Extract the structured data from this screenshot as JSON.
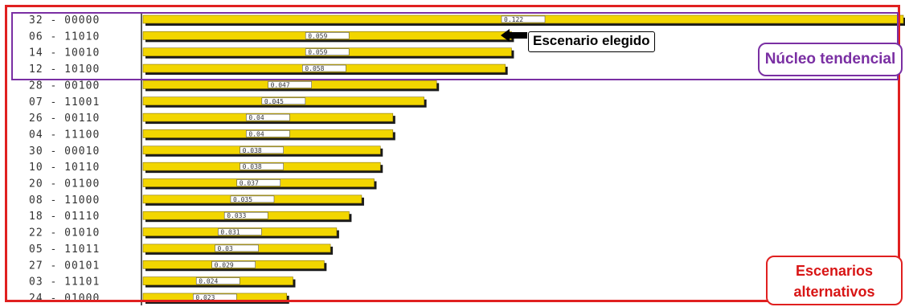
{
  "chart_data": {
    "type": "bar",
    "orientation": "horizontal",
    "categories": [
      "32 - 00000",
      "06 - 11010",
      "14 - 10010",
      "12 - 10100",
      "28 - 00100",
      "07 - 11001",
      "26 - 00110",
      "04 - 11100",
      "30 - 00010",
      "10 - 10110",
      "20 - 01100",
      "08 - 11000",
      "18 - 01110",
      "22 - 01010",
      "05 - 11011",
      "27 - 00101",
      "03 - 11101",
      "24 - 01000"
    ],
    "values": [
      0.122,
      0.059,
      0.059,
      0.058,
      0.047,
      0.045,
      0.04,
      0.04,
      0.038,
      0.038,
      0.037,
      0.035,
      0.033,
      0.031,
      0.03,
      0.029,
      0.024,
      0.023
    ],
    "value_labels": [
      "0.122",
      "0.059",
      "0.059",
      "0.058",
      "0.047",
      "0.045",
      "0.04",
      "0.04",
      "0.038",
      "0.038",
      "0.037",
      "0.035",
      "0.033",
      "0.031",
      "0.03",
      "0.029",
      "0.024",
      "0.023"
    ],
    "bar_color": "#f2d600",
    "grid": false
  },
  "annotations": {
    "chosen_scenario": "Escenario elegido",
    "core_group_label": "Núcleo tendencial",
    "alt_group_label_line1": "Escenarios",
    "alt_group_label_line2": "alternativos"
  },
  "colors": {
    "outer_frame": "#e02020",
    "core_frame": "#7a2fa3",
    "core_text": "#7a2fa3",
    "alt_text": "#d81515"
  }
}
